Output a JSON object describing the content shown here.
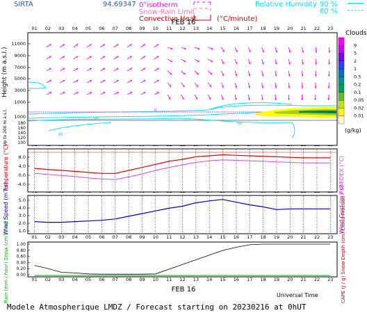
{
  "header": {
    "site": "SIRTA",
    "coords": "94.69347",
    "legend_left": [
      {
        "label": "0°isotherm",
        "color": "#ff00ff"
      },
      {
        "label": "Snow-Rain Limit",
        "color": "#ff66cc"
      },
      {
        "label": "Convective Heat.",
        "color": "#cc0000"
      }
    ],
    "units_heat": "(°C/minute)",
    "rh_label": "Relative Humidity",
    "rh_levels": [
      "90 %",
      "60 %"
    ],
    "rh_color": "#00e5ff"
  },
  "hours": [
    "01",
    "02",
    "03",
    "04",
    "05",
    "06",
    "07",
    "08",
    "09",
    "10",
    "11",
    "12",
    "13",
    "14",
    "15",
    "16",
    "17",
    "18",
    "19",
    "20",
    "21",
    "22",
    "23"
  ],
  "date_label": "FEB 16",
  "panel1": {
    "ylabel": "Height (m a.s.l.)",
    "yticks_upper": [
      "11000",
      "9000",
      "7000",
      "5000",
      "3000",
      "1000"
    ],
    "yticks_lower": [
      "180",
      "160",
      "140",
      "120",
      "100"
    ],
    "lower_note": "Up to 200 m a.s.l.",
    "iso_label": "0"
  },
  "clouds": {
    "title": "Clouds",
    "levels": [
      "9",
      "5",
      "2",
      "1",
      "0.5",
      "0.2",
      "0.1",
      "0.05",
      "0.02",
      "0.01"
    ],
    "units": "(g/kg)",
    "colors": [
      "#ff00ff",
      "#c800ff",
      "#7a00ff",
      "#3040ff",
      "#0070c0",
      "#009090",
      "#00a050",
      "#60c030",
      "#c0e020",
      "#ffff00",
      "#ffffd0"
    ]
  },
  "panel2": {
    "left_label": "Temperature (°C)",
    "right_label": "HUMIDEX (°C)",
    "yticks": [
      "8.0",
      "4.0",
      "0.0",
      "-4.0"
    ]
  },
  "panel3": {
    "left_label": "Wind Speed (m / s)",
    "right_label": "Wind Gust (m / s)",
    "yticks": [
      "5.0",
      "4.0",
      "3.0",
      "2.0",
      "1.0"
    ]
  },
  "panel4": {
    "left_label": "Rain (mm / hour)  Snow (cm / hour)",
    "right_label": "CAPE (J / g)  Snow Depth (cm)  Cloud Fraction",
    "yticks": [
      "1.00",
      "0.80",
      "0.60",
      "0.40",
      "0.20",
      "0.00"
    ],
    "x_axis_title": "Universal Time"
  },
  "footer": "Modele Atmospherique LMDZ / Forecast starting on 20230216 at 0hUT",
  "chart_data": {
    "type": "line",
    "x": [
      "01",
      "02",
      "03",
      "04",
      "05",
      "06",
      "07",
      "08",
      "09",
      "10",
      "11",
      "12",
      "13",
      "14",
      "15",
      "16",
      "17",
      "18",
      "19",
      "20",
      "21",
      "22",
      "23"
    ],
    "series": [
      {
        "name": "Temperature",
        "color": "#dd0000",
        "values": [
          2.8,
          2.4,
          2.0,
          1.6,
          1.2,
          0.8,
          0.8,
          2.0,
          3.2,
          4.4,
          5.6,
          6.4,
          7.4,
          7.8,
          8.2,
          8.0,
          7.8,
          7.6,
          7.4,
          7.2,
          7.0,
          7.0,
          7.0
        ]
      },
      {
        "name": "HUMIDEX",
        "color": "#dd44dd",
        "values": [
          0.8,
          0.4,
          0.0,
          -0.4,
          -1.0,
          -1.4,
          -1.6,
          -0.6,
          0.6,
          2.0,
          3.2,
          4.2,
          5.2,
          5.8,
          6.2,
          6.0,
          5.8,
          5.6,
          5.4,
          5.2,
          5.0,
          5.0,
          5.0
        ]
      },
      {
        "name": "Wind Speed",
        "color": "#0000bb",
        "values": [
          1.8,
          1.7,
          1.7,
          1.8,
          1.9,
          2.0,
          2.2,
          2.6,
          3.0,
          3.4,
          3.8,
          4.1,
          4.6,
          4.9,
          5.1,
          4.7,
          4.3,
          4.0,
          3.6,
          3.7,
          3.7,
          3.7,
          3.7
        ]
      },
      {
        "name": "Cloud Fraction",
        "color": "#000000",
        "values": [
          0.32,
          0.22,
          0.1,
          0.08,
          0.05,
          0.04,
          0.04,
          0.04,
          0.04,
          0.05,
          0.2,
          0.35,
          0.5,
          0.65,
          0.8,
          0.9,
          0.98,
          1.0,
          1.0,
          1.0,
          1.0,
          1.0,
          1.0
        ]
      },
      {
        "name": "Rain",
        "color": "#00aa00",
        "values": [
          0,
          0,
          0,
          0,
          0,
          0,
          0,
          0,
          0,
          0,
          0,
          0,
          0,
          0,
          0,
          0,
          0,
          0,
          0,
          0,
          0,
          0,
          0
        ]
      }
    ]
  }
}
